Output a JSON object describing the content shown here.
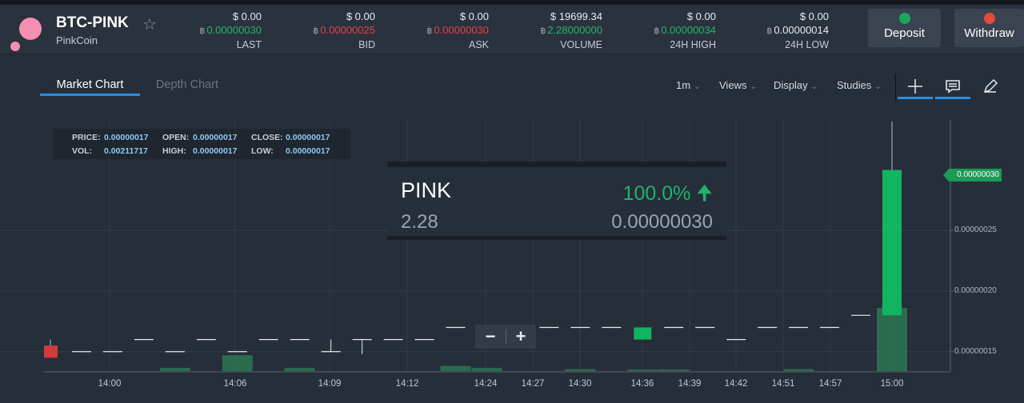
{
  "header": {
    "pair": "BTC-PINK",
    "coin_name": "PinkCoin",
    "btc_symbol": "฿",
    "stats": [
      {
        "id": "last",
        "usd": "$ 0.00",
        "btc": "0.00000030",
        "color": "green",
        "label": "LAST"
      },
      {
        "id": "bid",
        "usd": "$ 0.00",
        "btc": "0.00000025",
        "color": "red",
        "label": "BID"
      },
      {
        "id": "ask",
        "usd": "$ 0.00",
        "btc": "0.00000030",
        "color": "red",
        "label": "ASK"
      },
      {
        "id": "volume",
        "usd": "$ 19699.34",
        "btc": "2.28000000",
        "color": "green",
        "label": "VOLUME"
      },
      {
        "id": "high",
        "usd": "$ 0.00",
        "btc": "0.00000034",
        "color": "green",
        "label": "24H HIGH"
      },
      {
        "id": "low",
        "usd": "$ 0.00",
        "btc": "0.00000014",
        "color": "white",
        "label": "24H LOW"
      }
    ],
    "deposit_label": "Deposit",
    "withdraw_label": "Withdraw"
  },
  "tabs": {
    "market_chart": "Market Chart",
    "depth_chart": "Depth Chart"
  },
  "toolbar": {
    "interval": "1m",
    "views": "Views",
    "display": "Display",
    "studies": "Studies"
  },
  "info_box": {
    "price_label": "PRICE:",
    "price": "0.00000017",
    "open_label": "OPEN:",
    "open": "0.00000017",
    "close_label": "CLOSE:",
    "close": "0.00000017",
    "vol_label": "VOL:",
    "vol": "0.00211717",
    "high_label": "HIGH:",
    "high": "0.00000017",
    "low_label": "LOW:",
    "low": "0.00000017"
  },
  "overlay": {
    "coin": "PINK",
    "change": "100.0%",
    "volume": "2.28",
    "price": "0.00000030"
  },
  "chart_data": {
    "type": "candlestick",
    "current_price_tag": "0.00000030",
    "y_tick_labels": [
      "0.00000025",
      "0.00000020",
      "0.00000015"
    ],
    "y_ticks": [
      2.5e-07,
      2e-07,
      1.5e-07
    ],
    "ylim": [
      1.34e-07,
      3.4e-07
    ],
    "x_tick_labels": [
      "14:00",
      "14:06",
      "14:09",
      "14:12",
      "14:24",
      "14:27",
      "14:30",
      "14:36",
      "14:39",
      "14:42",
      "14:51",
      "14:57",
      "15:00"
    ],
    "candles": [
      {
        "o": 1.55e-07,
        "c": 1.45e-07,
        "h": 1.6e-07,
        "l": 1.45e-07
      },
      {
        "o": 1.5e-07,
        "c": 1.5e-07,
        "h": 1.5e-07,
        "l": 1.5e-07
      },
      {
        "o": 1.5e-07,
        "c": 1.5e-07,
        "h": 1.5e-07,
        "l": 1.5e-07
      },
      {
        "o": 1.6e-07,
        "c": 1.6e-07,
        "h": 1.6e-07,
        "l": 1.6e-07
      },
      {
        "o": 1.5e-07,
        "c": 1.5e-07,
        "h": 1.5e-07,
        "l": 1.5e-07
      },
      {
        "o": 1.6e-07,
        "c": 1.6e-07,
        "h": 1.6e-07,
        "l": 1.6e-07
      },
      {
        "o": 1.5e-07,
        "c": 1.5e-07,
        "h": 1.5e-07,
        "l": 1.5e-07
      },
      {
        "o": 1.6e-07,
        "c": 1.6e-07,
        "h": 1.6e-07,
        "l": 1.6e-07
      },
      {
        "o": 1.6e-07,
        "c": 1.6e-07,
        "h": 1.6e-07,
        "l": 1.6e-07
      },
      {
        "o": 1.5e-07,
        "c": 1.5e-07,
        "h": 1.6e-07,
        "l": 1.5e-07
      },
      {
        "o": 1.6e-07,
        "c": 1.6e-07,
        "h": 1.6e-07,
        "l": 1.48e-07
      },
      {
        "o": 1.6e-07,
        "c": 1.6e-07,
        "h": 1.6e-07,
        "l": 1.6e-07
      },
      {
        "o": 1.6e-07,
        "c": 1.6e-07,
        "h": 1.6e-07,
        "l": 1.6e-07
      },
      {
        "o": 1.7e-07,
        "c": 1.7e-07,
        "h": 1.7e-07,
        "l": 1.7e-07
      },
      {
        "o": 1.7e-07,
        "c": 1.7e-07,
        "h": 1.7e-07,
        "l": 1.7e-07
      },
      {
        "o": 1.7e-07,
        "c": 1.7e-07,
        "h": 1.7e-07,
        "l": 1.7e-07
      },
      {
        "o": 1.7e-07,
        "c": 1.7e-07,
        "h": 1.7e-07,
        "l": 1.7e-07
      },
      {
        "o": 1.7e-07,
        "c": 1.7e-07,
        "h": 1.7e-07,
        "l": 1.7e-07
      },
      {
        "o": 1.7e-07,
        "c": 1.7e-07,
        "h": 1.7e-07,
        "l": 1.7e-07
      },
      {
        "o": 1.6e-07,
        "c": 1.7e-07,
        "h": 1.7e-07,
        "l": 1.6e-07
      },
      {
        "o": 1.7e-07,
        "c": 1.7e-07,
        "h": 1.7e-07,
        "l": 1.7e-07
      },
      {
        "o": 1.7e-07,
        "c": 1.7e-07,
        "h": 1.7e-07,
        "l": 1.7e-07
      },
      {
        "o": 1.6e-07,
        "c": 1.6e-07,
        "h": 1.6e-07,
        "l": 1.6e-07
      },
      {
        "o": 1.7e-07,
        "c": 1.7e-07,
        "h": 1.7e-07,
        "l": 1.7e-07
      },
      {
        "o": 1.7e-07,
        "c": 1.7e-07,
        "h": 1.7e-07,
        "l": 1.7e-07
      },
      {
        "o": 1.7e-07,
        "c": 1.7e-07,
        "h": 1.7e-07,
        "l": 1.7e-07
      },
      {
        "o": 1.8e-07,
        "c": 1.8e-07,
        "h": 1.8e-07,
        "l": 1.8e-07
      },
      {
        "o": 1.8e-07,
        "c": 3e-07,
        "h": 3.4e-07,
        "l": 1.8e-07
      }
    ],
    "volumes": [
      0,
      0,
      0,
      0,
      0.05,
      0,
      0.25,
      0,
      0.05,
      0,
      0,
      0,
      0,
      0.08,
      0.05,
      0,
      0,
      0.03,
      0,
      0.02,
      0.02,
      0,
      0,
      0,
      0.03,
      0,
      0,
      1.0
    ]
  },
  "colors": {
    "bull": "#12b461",
    "bear": "#d23b3b",
    "grid": "#333c48",
    "flat": "#e6eaee",
    "volume_fill": "#2d7552"
  }
}
